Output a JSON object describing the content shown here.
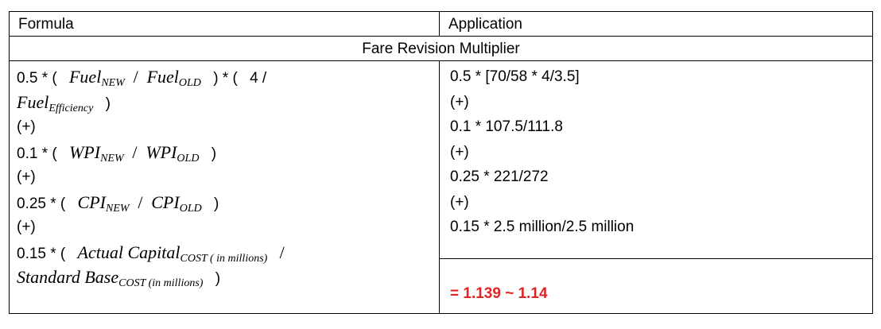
{
  "headers": {
    "formula": "Formula",
    "application": "Application"
  },
  "subheader": "Fare Revision Multiplier",
  "formula": {
    "fuel": {
      "coef": "0.5 * (",
      "num": "Fuel",
      "num_sub": "NEW",
      "den": "Fuel",
      "den_sub": "OLD",
      "mid": ") * (",
      "four": "4 /",
      "eff": "Fuel",
      "eff_sub": "Efficiency",
      "close": ")"
    },
    "plus1": "(+)",
    "wpi": {
      "coef": "0.1 * (",
      "num": "WPI",
      "num_sub": "NEW",
      "den": "WPI",
      "den_sub": "OLD",
      "close": ")"
    },
    "plus2": "(+)",
    "cpi": {
      "coef": "0.25 * (",
      "num": "CPI",
      "num_sub": "NEW",
      "den": "CPI",
      "den_sub": "OLD",
      "close": ")"
    },
    "plus3": "(+)",
    "capital": {
      "coef": "0.15 * (",
      "num": "Actual Capital",
      "num_sub": "COST ( in millions)",
      "slash": "/",
      "den": "Standard Base",
      "den_sub": "COST (in millions)",
      "close": ")"
    }
  },
  "application": {
    "lines": [
      "0.5 * [70/58 * 4/3.5]",
      "(+)",
      "0.1  * 107.5/111.8",
      "(+)",
      "0.25 * 221/272",
      "(+)",
      "0.15 * 2.5 million/2.5 million"
    ],
    "result": "= 1.139 ~ 1.14",
    "result_color": "#e02424"
  }
}
